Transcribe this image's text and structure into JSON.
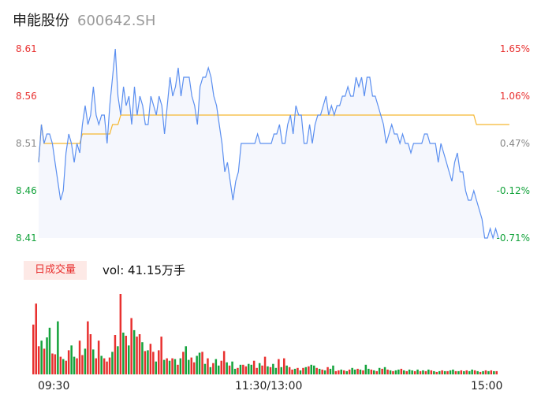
{
  "header": {
    "name": "申能股份",
    "code": "600642.SH"
  },
  "volume_panel": {
    "badge": "日成交量",
    "label": "vol: 41.15万手"
  },
  "colors": {
    "price_line": "#5b8ff0",
    "avg_line": "#f5b731",
    "up": "#e8302f",
    "down": "#14a33c",
    "flat": "#888888"
  },
  "chart_data": [
    {
      "type": "line",
      "y_left_ticks": [
        "8.61",
        "8.56",
        "8.51",
        "8.46",
        "8.41"
      ],
      "y_right_ticks": [
        "1.65%",
        "1.06%",
        "0.47%",
        "-0.12%",
        "-0.71%"
      ],
      "ylim": [
        8.41,
        8.61
      ],
      "x_ticks": [
        "09:30",
        "11:30/13:00",
        "15:00"
      ],
      "grid": false,
      "series": [
        {
          "values": [
            8.49,
            8.53,
            8.51,
            8.52,
            8.52,
            8.51,
            8.49,
            8.47,
            8.45,
            8.46,
            8.5,
            8.52,
            8.51,
            8.49,
            8.51,
            8.5,
            8.53,
            8.55,
            8.53,
            8.54,
            8.57,
            8.54,
            8.53,
            8.54,
            8.54,
            8.51,
            8.55,
            8.58,
            8.61,
            8.56,
            8.54,
            8.57,
            8.55,
            8.56,
            8.53,
            8.57,
            8.54,
            8.56,
            8.55,
            8.53,
            8.53,
            8.56,
            8.55,
            8.54,
            8.56,
            8.55,
            8.52,
            8.55,
            8.58,
            8.56,
            8.57,
            8.59,
            8.56,
            8.58,
            8.58,
            8.58,
            8.56,
            8.55,
            8.53,
            8.57,
            8.58,
            8.58,
            8.59,
            8.58,
            8.56,
            8.55,
            8.53,
            8.51,
            8.48,
            8.49,
            8.47,
            8.45,
            8.47,
            8.48,
            8.51,
            8.51,
            8.51,
            8.51,
            8.51,
            8.51,
            8.52,
            8.51,
            8.51,
            8.51,
            8.51,
            8.51,
            8.52,
            8.52,
            8.53,
            8.51,
            8.51,
            8.53,
            8.54,
            8.52,
            8.55,
            8.54,
            8.54,
            8.51,
            8.51,
            8.53,
            8.51,
            8.53,
            8.54,
            8.54,
            8.55,
            8.56,
            8.54,
            8.55,
            8.54,
            8.55,
            8.55,
            8.56,
            8.56,
            8.57,
            8.56,
            8.56,
            8.58,
            8.57,
            8.58,
            8.56,
            8.58,
            8.58,
            8.56,
            8.56,
            8.55,
            8.54,
            8.53,
            8.51,
            8.52,
            8.53,
            8.52,
            8.52,
            8.51,
            8.52,
            8.51,
            8.51,
            8.5,
            8.51,
            8.51,
            8.51,
            8.51,
            8.52,
            8.52,
            8.51,
            8.51,
            8.51,
            8.49,
            8.51,
            8.5,
            8.49,
            8.48,
            8.47,
            8.49,
            8.5,
            8.48,
            8.48,
            8.46,
            8.45,
            8.45,
            8.46,
            8.45,
            8.44,
            8.43,
            8.41,
            8.41,
            8.42,
            8.41,
            8.42,
            8.41
          ]
        },
        {
          "values": [
            8.49,
            8.53,
            8.51,
            8.51,
            8.51,
            8.51,
            8.51,
            8.51,
            8.51,
            8.51,
            8.51,
            8.51,
            8.51,
            8.51,
            8.51,
            8.51,
            8.52,
            8.52,
            8.52,
            8.52,
            8.52,
            8.52,
            8.52,
            8.52,
            8.52,
            8.52,
            8.52,
            8.53,
            8.53,
            8.53,
            8.54,
            8.54,
            8.54,
            8.54,
            8.54,
            8.54,
            8.54,
            8.54,
            8.54,
            8.54,
            8.54,
            8.54,
            8.54,
            8.54,
            8.54,
            8.54,
            8.54,
            8.54,
            8.54,
            8.54,
            8.54,
            8.54,
            8.54,
            8.54,
            8.54,
            8.54,
            8.54,
            8.54,
            8.54,
            8.54,
            8.54,
            8.54,
            8.54,
            8.54,
            8.54,
            8.54,
            8.54,
            8.54,
            8.54,
            8.54,
            8.54,
            8.54,
            8.54,
            8.54,
            8.54,
            8.54,
            8.54,
            8.54,
            8.54,
            8.54,
            8.54,
            8.54,
            8.54,
            8.54,
            8.54,
            8.54,
            8.54,
            8.54,
            8.54,
            8.54,
            8.54,
            8.54,
            8.54,
            8.54,
            8.54,
            8.54,
            8.54,
            8.54,
            8.54,
            8.54,
            8.54,
            8.54,
            8.54,
            8.54,
            8.54,
            8.54,
            8.54,
            8.54,
            8.54,
            8.54,
            8.54,
            8.54,
            8.54,
            8.54,
            8.54,
            8.54,
            8.54,
            8.54,
            8.54,
            8.54,
            8.54,
            8.54,
            8.54,
            8.54,
            8.54,
            8.54,
            8.54,
            8.54,
            8.54,
            8.54,
            8.54,
            8.54,
            8.54,
            8.54,
            8.54,
            8.54,
            8.54,
            8.54,
            8.54,
            8.54,
            8.54,
            8.54,
            8.54,
            8.54,
            8.54,
            8.54,
            8.54,
            8.54,
            8.54,
            8.54,
            8.54,
            8.54,
            8.54,
            8.54,
            8.54,
            8.54,
            8.54,
            8.54,
            8.54,
            8.54,
            8.53,
            8.53,
            8.53,
            8.53,
            8.53,
            8.53,
            8.53,
            8.53,
            8.53,
            8.53,
            8.53,
            8.53,
            8.53
          ]
        }
      ]
    },
    {
      "type": "bar",
      "x_ticks": [
        "09:30",
        "11:30/13:00",
        "15:00"
      ],
      "values": [
        0.62,
        0.88,
        0.35,
        0.42,
        0.32,
        0.46,
        0.58,
        0.26,
        0.25,
        0.66,
        0.22,
        0.19,
        0.17,
        0.3,
        0.36,
        0.22,
        0.2,
        0.42,
        0.24,
        0.32,
        0.66,
        0.5,
        0.31,
        0.2,
        0.42,
        0.23,
        0.2,
        0.16,
        0.21,
        0.28,
        0.49,
        0.35,
        1.0,
        0.52,
        0.48,
        0.36,
        0.7,
        0.55,
        0.47,
        0.5,
        0.4,
        0.29,
        0.3,
        0.38,
        0.28,
        0.16,
        0.3,
        0.47,
        0.18,
        0.2,
        0.17,
        0.2,
        0.19,
        0.12,
        0.2,
        0.28,
        0.35,
        0.18,
        0.21,
        0.15,
        0.23,
        0.27,
        0.28,
        0.13,
        0.2,
        0.09,
        0.14,
        0.19,
        0.11,
        0.17,
        0.29,
        0.15,
        0.11,
        0.16,
        0.07,
        0.08,
        0.12,
        0.12,
        0.1,
        0.13,
        0.12,
        0.17,
        0.08,
        0.14,
        0.11,
        0.22,
        0.1,
        0.09,
        0.13,
        0.08,
        0.19,
        0.09,
        0.2,
        0.11,
        0.09,
        0.06,
        0.07,
        0.08,
        0.05,
        0.08,
        0.09,
        0.1,
        0.12,
        0.11,
        0.08,
        0.07,
        0.06,
        0.05,
        0.09,
        0.07,
        0.11,
        0.04,
        0.05,
        0.06,
        0.05,
        0.04,
        0.06,
        0.08,
        0.06,
        0.07,
        0.06,
        0.05,
        0.12,
        0.07,
        0.06,
        0.05,
        0.04,
        0.08,
        0.07,
        0.09,
        0.06,
        0.05,
        0.04,
        0.05,
        0.06,
        0.07,
        0.05,
        0.04,
        0.06,
        0.05,
        0.04,
        0.06,
        0.04,
        0.05,
        0.04,
        0.06,
        0.05,
        0.04,
        0.03,
        0.04,
        0.05,
        0.04,
        0.04,
        0.05,
        0.06,
        0.04,
        0.04,
        0.05,
        0.04,
        0.05,
        0.04,
        0.06,
        0.05,
        0.04,
        0.03,
        0.04,
        0.05,
        0.04,
        0.05,
        0.04,
        0.04
      ],
      "colors": [
        "up",
        "up",
        "up",
        "down",
        "up",
        "down",
        "down",
        "up",
        "up",
        "down",
        "up",
        "down",
        "up",
        "up",
        "down",
        "down",
        "up",
        "up",
        "up",
        "down",
        "up",
        "up",
        "down",
        "up",
        "up",
        "down",
        "up",
        "up",
        "up",
        "down",
        "up",
        "down",
        "up",
        "down",
        "up",
        "down",
        "up",
        "down",
        "up",
        "up",
        "down",
        "up",
        "down",
        "up",
        "up",
        "down",
        "up",
        "up",
        "down",
        "up",
        "down",
        "up",
        "down",
        "up",
        "down",
        "up",
        "down",
        "down",
        "up",
        "up",
        "down",
        "down",
        "up",
        "down",
        "up",
        "down",
        "up",
        "down",
        "down",
        "up",
        "up",
        "down",
        "up",
        "down",
        "down",
        "up",
        "down",
        "up",
        "up",
        "down",
        "down",
        "up",
        "up",
        "down",
        "up",
        "up",
        "down",
        "up",
        "down",
        "down",
        "up",
        "down",
        "up",
        "down",
        "up",
        "up",
        "down",
        "up",
        "down",
        "up",
        "down",
        "up",
        "down",
        "down",
        "up",
        "down",
        "up",
        "down",
        "up",
        "down",
        "down",
        "up",
        "up",
        "down",
        "up",
        "down",
        "up",
        "down",
        "down",
        "up",
        "down",
        "up",
        "down",
        "down",
        "up",
        "down",
        "up",
        "down",
        "up",
        "down",
        "up",
        "down",
        "up",
        "down",
        "down",
        "up",
        "down",
        "up",
        "down",
        "down",
        "up",
        "down",
        "up",
        "down",
        "up",
        "down",
        "up",
        "down",
        "up",
        "down",
        "up",
        "down",
        "up",
        "down",
        "down",
        "up",
        "down",
        "up",
        "down",
        "up",
        "down",
        "down",
        "up",
        "down",
        "up",
        "down",
        "up",
        "down",
        "up",
        "down",
        "up",
        "down",
        "up",
        "up"
      ]
    }
  ]
}
